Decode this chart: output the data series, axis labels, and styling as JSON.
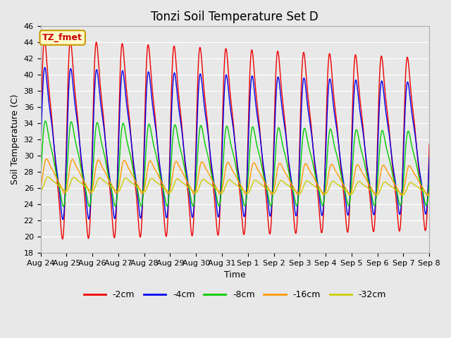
{
  "title": "Tonzi Soil Temperature Set D",
  "xlabel": "Time",
  "ylabel": "Soil Temperature (C)",
  "ylim": [
    18,
    46
  ],
  "background_color": "#e8e8e8",
  "legend_label": "TZ_fmet",
  "series": {
    "-2cm": {
      "color": "#ee0000",
      "amp": 10.5,
      "mean": 32.0,
      "phase_lag": 0.0,
      "peak_skew": 0.3
    },
    "-4cm": {
      "color": "#0000ee",
      "amp": 8.0,
      "mean": 31.5,
      "phase_lag": 0.08,
      "peak_skew": 0.3
    },
    "-8cm": {
      "color": "#00cc00",
      "amp": 4.5,
      "mean": 29.0,
      "phase_lag": 0.22,
      "peak_skew": 0.35
    },
    "-16cm": {
      "color": "#ff9900",
      "amp": 1.8,
      "mean": 27.5,
      "phase_lag": 0.5,
      "peak_skew": 0.4
    },
    "-32cm": {
      "color": "#cccc00",
      "amp": 0.75,
      "mean": 26.5,
      "phase_lag": 0.85,
      "peak_skew": 0.45
    }
  },
  "xtick_labels": [
    "Aug 24",
    "Aug 25",
    "Aug 26",
    "Aug 27",
    "Aug 28",
    "Aug 29",
    "Aug 30",
    "Aug 31",
    "Sep 1",
    "Sep 2",
    "Sep 3",
    "Sep 4",
    "Sep 5",
    "Sep 6",
    "Sep 7",
    "Sep 8"
  ],
  "title_fontsize": 12,
  "axis_fontsize": 9,
  "tick_fontsize": 8,
  "legend_fontsize": 9,
  "figsize": [
    6.4,
    4.8
  ],
  "dpi": 100
}
